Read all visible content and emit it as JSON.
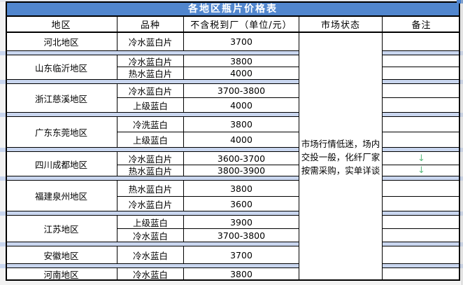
{
  "title": "各地区瓶片价格表",
  "columns": {
    "region": "地区",
    "variety": "品种",
    "price": "不含税到厂（单位/元）",
    "market": "市场状态",
    "remark": "备注"
  },
  "market_status": "市场行情低迷，场内交投一般，化纤厂家按需采购，实单详谈",
  "regions": [
    {
      "name": "河北地区",
      "rows": [
        {
          "variety": "冷水蓝白片",
          "price": "3700",
          "remark": ""
        }
      ]
    },
    {
      "name": "山东临沂地区",
      "rows": [
        {
          "variety": "冷水蓝白片",
          "price": "3800",
          "remark": ""
        },
        {
          "variety": "热水蓝白片",
          "price": "4000",
          "remark": ""
        }
      ]
    },
    {
      "name": "浙江慈溪地区",
      "rows": [
        {
          "variety": "冷水蓝白片",
          "price": "3700-3800",
          "remark": ""
        },
        {
          "variety": "上级蓝白",
          "price": "4000",
          "remark": ""
        }
      ]
    },
    {
      "name": "广东东莞地区",
      "rows": [
        {
          "variety": "冷洗蓝白",
          "price": "3800",
          "remark": ""
        },
        {
          "variety": "上级蓝白",
          "price": "4000",
          "remark": ""
        }
      ]
    },
    {
      "name": "四川成都地区",
      "rows": [
        {
          "variety": "冷水蓝白片",
          "price": "3600-3700",
          "remark": "↓"
        },
        {
          "variety": "热水蓝白片",
          "price": "3800-3900",
          "remark": "↓"
        }
      ]
    },
    {
      "name": "福建泉州地区",
      "rows": [
        {
          "variety": "热水蓝白片",
          "price": "3800",
          "remark": ""
        },
        {
          "variety": "冷水蓝白片",
          "price": "3600",
          "remark": ""
        }
      ]
    },
    {
      "name": "江苏地区",
      "rows": [
        {
          "variety": "上级蓝白",
          "price": "3900",
          "remark": ""
        },
        {
          "variety": "冷水蓝白",
          "price": "3700-3800",
          "remark": ""
        }
      ]
    },
    {
      "name": "安徽地区",
      "rows": [
        {
          "variety": "冷水蓝白",
          "price": "3700",
          "remark": ""
        }
      ]
    },
    {
      "name": "河南地区",
      "rows": [
        {
          "variety": "冷水蓝白",
          "price": "3800",
          "remark": ""
        }
      ]
    }
  ],
  "colors": {
    "title_bg": "#5186ce",
    "separator_band": "#c9d6ef",
    "arrow_green": "#5fbc82",
    "border": "#000000"
  }
}
